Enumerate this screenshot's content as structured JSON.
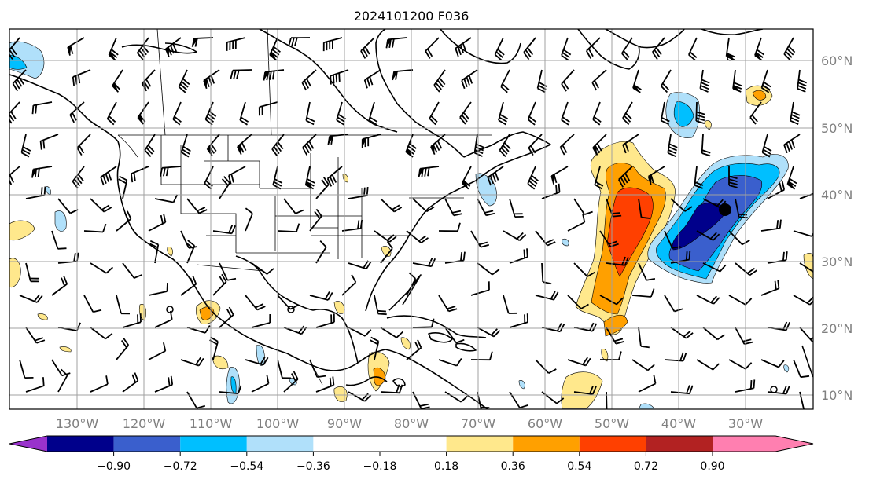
{
  "title": "2024101200 F036",
  "colors": {
    "levels": [
      "#9932cc",
      "#00008b",
      "#3a5fcd",
      "#00bfff",
      "#b0e0fa",
      "#ffffff",
      "#ffe88c",
      "#ffa000",
      "#ff4000",
      "#b22222",
      "#ff7fb0"
    ],
    "grid": "#a0a0a0",
    "label": "#808080"
  },
  "axes": {
    "lon_ticks": [
      "130°W",
      "120°W",
      "110°W",
      "100°W",
      "90°W",
      "80°W",
      "70°W",
      "60°W",
      "50°W",
      "40°W",
      "30°W"
    ],
    "lat_ticks": [
      "60°N",
      "50°N",
      "40°N",
      "30°N",
      "20°N",
      "10°N"
    ]
  },
  "colorbar": {
    "ticks": [
      "−0.90",
      "−0.72",
      "−0.54",
      "−0.36",
      "−0.18",
      "0.18",
      "0.36",
      "0.54",
      "0.72",
      "0.90"
    ]
  },
  "markers": {
    "storm_center": "filled-circle",
    "calm_circles": 4
  }
}
